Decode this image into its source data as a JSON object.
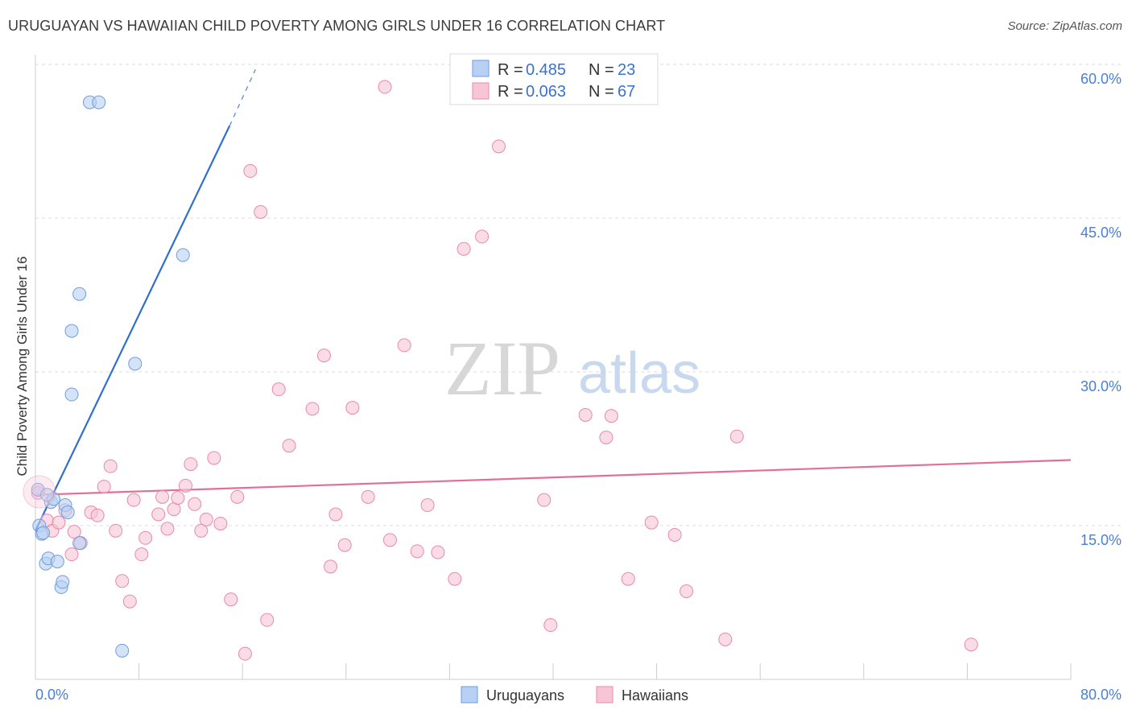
{
  "title": "URUGUAYAN VS HAWAIIAN CHILD POVERTY AMONG GIRLS UNDER 16 CORRELATION CHART",
  "source": "Source: ZipAtlas.com",
  "watermark": {
    "zip": "ZIP",
    "atlas": "atlas"
  },
  "colors": {
    "blue_fill": "#b7d0f3",
    "blue_stroke": "#6f9de0",
    "blue_line": "#2f6fd0",
    "pink_fill": "#f7c5d5",
    "pink_stroke": "#e88aa8",
    "pink_line": "#e0709a",
    "grid": "#dddddd",
    "axis_label": "#4a7fd4"
  },
  "legend": {
    "rows": [
      {
        "r_label": "R = ",
        "r_value": "0.485",
        "n_label": "N = ",
        "n_value": "23"
      },
      {
        "r_label": "R = ",
        "r_value": "0.063",
        "n_label": "N = ",
        "n_value": "67"
      }
    ]
  },
  "chart_data": {
    "type": "scatter",
    "title": "URUGUAYAN VS HAWAIIAN CHILD POVERTY AMONG GIRLS UNDER 16 CORRELATION CHART",
    "xlabel": "",
    "ylabel": "Child Poverty Among Girls Under 16",
    "xlim": [
      0,
      80
    ],
    "ylim": [
      0,
      60
    ],
    "x_tick_labels": [
      "0.0%",
      "80.0%"
    ],
    "y_ticks": [
      15,
      30,
      45,
      60
    ],
    "y_tick_labels": [
      "15.0%",
      "30.0%",
      "45.0%",
      "60.0%"
    ],
    "grid": true,
    "legend_position": "top-center",
    "series": [
      {
        "name": "Uruguayans",
        "color": "blue",
        "points": [
          [
            0.2,
            18.5
          ],
          [
            0.3,
            15.0
          ],
          [
            0.5,
            14.2
          ],
          [
            0.6,
            14.3
          ],
          [
            0.8,
            11.3
          ],
          [
            1.0,
            11.8
          ],
          [
            1.2,
            17.3
          ],
          [
            1.4,
            17.6
          ],
          [
            1.7,
            11.5
          ],
          [
            2.0,
            9.0
          ],
          [
            2.1,
            9.5
          ],
          [
            2.3,
            17.0
          ],
          [
            2.5,
            16.3
          ],
          [
            2.8,
            27.8
          ],
          [
            2.8,
            34.0
          ],
          [
            3.4,
            37.6
          ],
          [
            3.4,
            13.3
          ],
          [
            4.2,
            56.3
          ],
          [
            4.9,
            56.3
          ],
          [
            6.7,
            2.8
          ],
          [
            7.7,
            30.8
          ],
          [
            11.4,
            41.4
          ],
          [
            0.9,
            18.0
          ]
        ],
        "trend": {
          "x0": 0,
          "y0": 14.5,
          "x1": 15.0,
          "y1": 54.0,
          "dash_x1": 17.0,
          "dash_y1": 59.5
        }
      },
      {
        "name": "Hawaiians",
        "color": "pink",
        "points": [
          [
            0.2,
            18.2
          ],
          [
            0.9,
            15.5
          ],
          [
            1.3,
            14.5
          ],
          [
            1.8,
            15.3
          ],
          [
            2.3,
            16.5
          ],
          [
            2.8,
            12.2
          ],
          [
            3.0,
            14.4
          ],
          [
            3.5,
            13.3
          ],
          [
            4.3,
            16.3
          ],
          [
            4.8,
            16.0
          ],
          [
            5.3,
            18.8
          ],
          [
            5.8,
            20.8
          ],
          [
            6.2,
            14.5
          ],
          [
            6.7,
            9.6
          ],
          [
            7.3,
            7.6
          ],
          [
            7.6,
            17.5
          ],
          [
            8.2,
            12.2
          ],
          [
            8.5,
            13.8
          ],
          [
            9.5,
            16.1
          ],
          [
            9.8,
            17.8
          ],
          [
            10.2,
            14.7
          ],
          [
            10.7,
            16.6
          ],
          [
            11.0,
            17.7
          ],
          [
            11.6,
            18.9
          ],
          [
            12.0,
            21.0
          ],
          [
            12.3,
            17.1
          ],
          [
            12.8,
            14.5
          ],
          [
            13.2,
            15.6
          ],
          [
            13.8,
            21.6
          ],
          [
            14.3,
            15.2
          ],
          [
            15.1,
            7.8
          ],
          [
            15.6,
            17.8
          ],
          [
            16.2,
            2.5
          ],
          [
            16.6,
            49.6
          ],
          [
            17.4,
            45.6
          ],
          [
            17.9,
            5.8
          ],
          [
            18.8,
            28.3
          ],
          [
            19.6,
            22.8
          ],
          [
            21.4,
            26.4
          ],
          [
            22.3,
            31.6
          ],
          [
            22.8,
            11.0
          ],
          [
            23.2,
            16.1
          ],
          [
            23.9,
            13.1
          ],
          [
            24.5,
            26.5
          ],
          [
            25.7,
            17.8
          ],
          [
            27.0,
            57.8
          ],
          [
            27.4,
            13.6
          ],
          [
            28.5,
            32.6
          ],
          [
            29.5,
            12.5
          ],
          [
            30.3,
            17.0
          ],
          [
            31.1,
            12.4
          ],
          [
            32.4,
            9.8
          ],
          [
            33.1,
            42.0
          ],
          [
            34.5,
            43.2
          ],
          [
            35.8,
            52.0
          ],
          [
            39.3,
            17.5
          ],
          [
            39.8,
            5.3
          ],
          [
            42.5,
            25.8
          ],
          [
            44.1,
            23.6
          ],
          [
            44.5,
            25.7
          ],
          [
            45.8,
            9.8
          ],
          [
            47.6,
            15.3
          ],
          [
            49.4,
            14.1
          ],
          [
            50.3,
            8.6
          ],
          [
            53.3,
            3.9
          ],
          [
            54.2,
            23.7
          ],
          [
            72.3,
            3.4
          ]
        ],
        "trend": {
          "x0": 0,
          "y0": 18.0,
          "x1": 80,
          "y1": 21.4
        }
      }
    ]
  }
}
